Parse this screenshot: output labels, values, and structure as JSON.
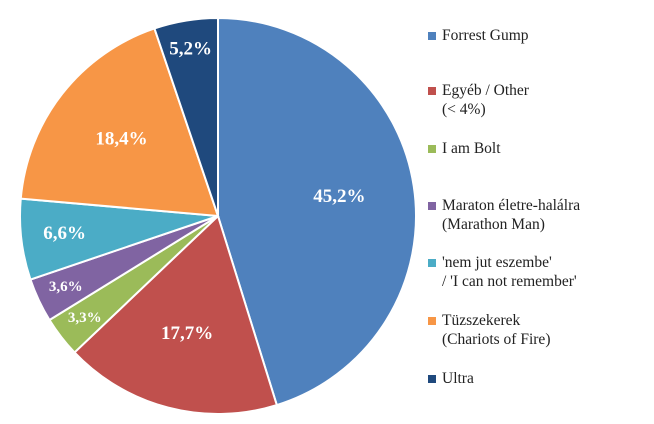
{
  "chart_data": {
    "type": "pie",
    "series": [
      {
        "name": "Forrest Gump",
        "color": "#4f81bd"
      },
      {
        "name": "Egyéb / Other\n(< 4%)",
        "color": "#c0504d"
      },
      {
        "name": "I am Bolt",
        "color": "#9bbb59"
      },
      {
        "name": "Maraton életre-halálra\n(Marathon Man)",
        "color": "#8064a2"
      },
      {
        "name": "'nem jut eszembe'\n/ 'I can not remember'",
        "color": "#4bacc6"
      },
      {
        "name": "Tüzszekerek\n(Chariots of Fire)",
        "color": "#f79646"
      },
      {
        "name": "Ultra",
        "color": "#1f497d"
      }
    ],
    "values": [
      45.2,
      17.7,
      3.3,
      3.6,
      6.6,
      18.4,
      5.2
    ],
    "value_labels": [
      "45,2%",
      "17,7%",
      "3,3%",
      "3,6%",
      "6,6%",
      "18,4%",
      "5,2%"
    ],
    "legend": "right"
  }
}
